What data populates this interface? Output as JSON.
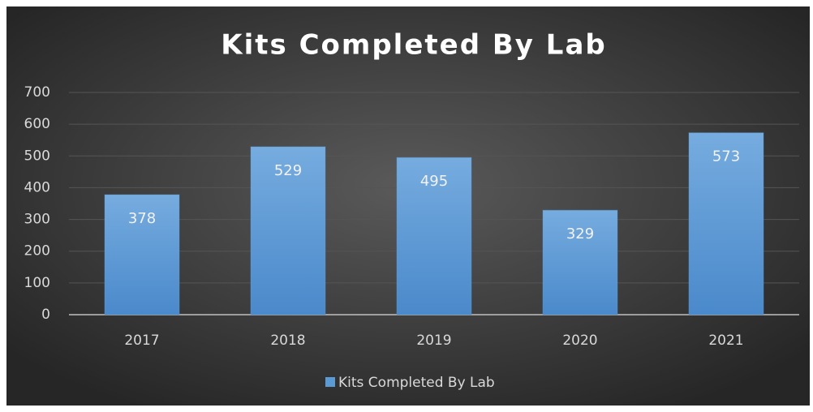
{
  "chart_data": {
    "type": "bar",
    "title": "Kits Completed By Lab",
    "categories": [
      "2017",
      "2018",
      "2019",
      "2020",
      "2021"
    ],
    "series": [
      {
        "name": "Kits Completed By Lab",
        "color": "#5b9bd5",
        "values": [
          378,
          529,
          495,
          329,
          573
        ]
      }
    ],
    "ylim": [
      0,
      700
    ],
    "yticks": [
      0,
      100,
      200,
      300,
      400,
      500,
      600,
      700
    ],
    "grid": true,
    "legend": "bottom"
  }
}
